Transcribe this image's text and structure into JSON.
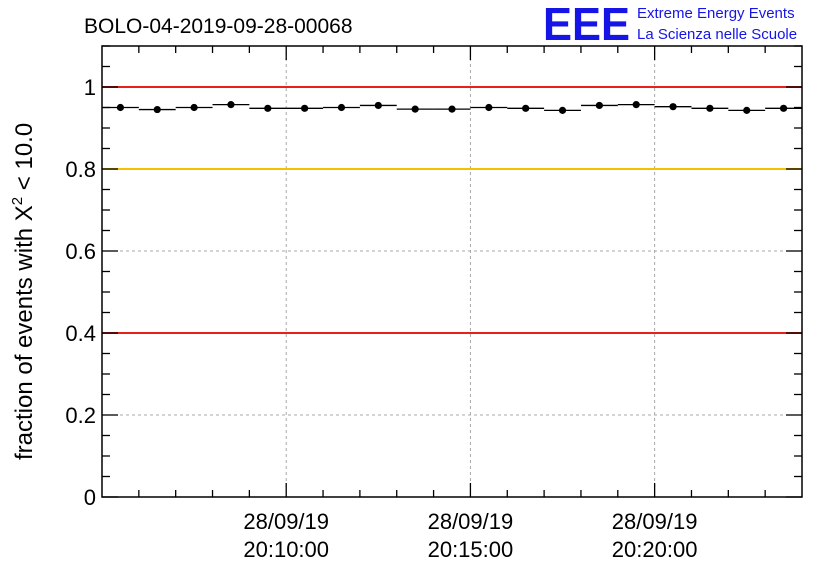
{
  "chart_data": {
    "type": "scatter",
    "title": "BOLO-04-2019-09-28-00068",
    "ylabel_prefix": "fraction of events with ",
    "ylabel_symbol": "X",
    "ylabel_sup": "2",
    "ylabel_suffix": " < 10.0",
    "ylim": [
      0,
      1.1
    ],
    "yticks": [
      {
        "value": 0,
        "label": "0"
      },
      {
        "value": 0.2,
        "label": "0.2"
      },
      {
        "value": 0.4,
        "label": "0.4"
      },
      {
        "value": 0.6,
        "label": "0.6"
      },
      {
        "value": 0.8,
        "label": "0.8"
      },
      {
        "value": 1,
        "label": "1"
      }
    ],
    "xlim_minutes": [
      0,
      19
    ],
    "xticks": [
      {
        "pos": 5,
        "date": "28/09/19",
        "time": "20:10:00"
      },
      {
        "pos": 10,
        "date": "28/09/19",
        "time": "20:15:00"
      },
      {
        "pos": 15,
        "date": "28/09/19",
        "time": "20:20:00"
      }
    ],
    "reference_lines": [
      {
        "value": 1.0,
        "color": "#e8201a"
      },
      {
        "value": 0.8,
        "color": "#f5c000"
      },
      {
        "value": 0.4,
        "color": "#e8201a"
      }
    ],
    "points": [
      {
        "x": 0.5,
        "y": 0.95
      },
      {
        "x": 1.5,
        "y": 0.945
      },
      {
        "x": 2.5,
        "y": 0.95
      },
      {
        "x": 3.5,
        "y": 0.957
      },
      {
        "x": 4.5,
        "y": 0.948
      },
      {
        "x": 5.5,
        "y": 0.948
      },
      {
        "x": 6.5,
        "y": 0.95
      },
      {
        "x": 7.5,
        "y": 0.955
      },
      {
        "x": 8.5,
        "y": 0.946
      },
      {
        "x": 9.5,
        "y": 0.946
      },
      {
        "x": 10.5,
        "y": 0.95
      },
      {
        "x": 11.5,
        "y": 0.948
      },
      {
        "x": 12.5,
        "y": 0.943
      },
      {
        "x": 13.5,
        "y": 0.955
      },
      {
        "x": 14.5,
        "y": 0.957
      },
      {
        "x": 15.5,
        "y": 0.952
      },
      {
        "x": 16.5,
        "y": 0.948
      },
      {
        "x": 17.5,
        "y": 0.943
      },
      {
        "x": 18.5,
        "y": 0.948
      }
    ]
  },
  "logo": {
    "mark": "EEE",
    "line1": "Extreme Energy Events",
    "line2": "La Scienza nelle Scuole",
    "color": "#1515e6"
  }
}
